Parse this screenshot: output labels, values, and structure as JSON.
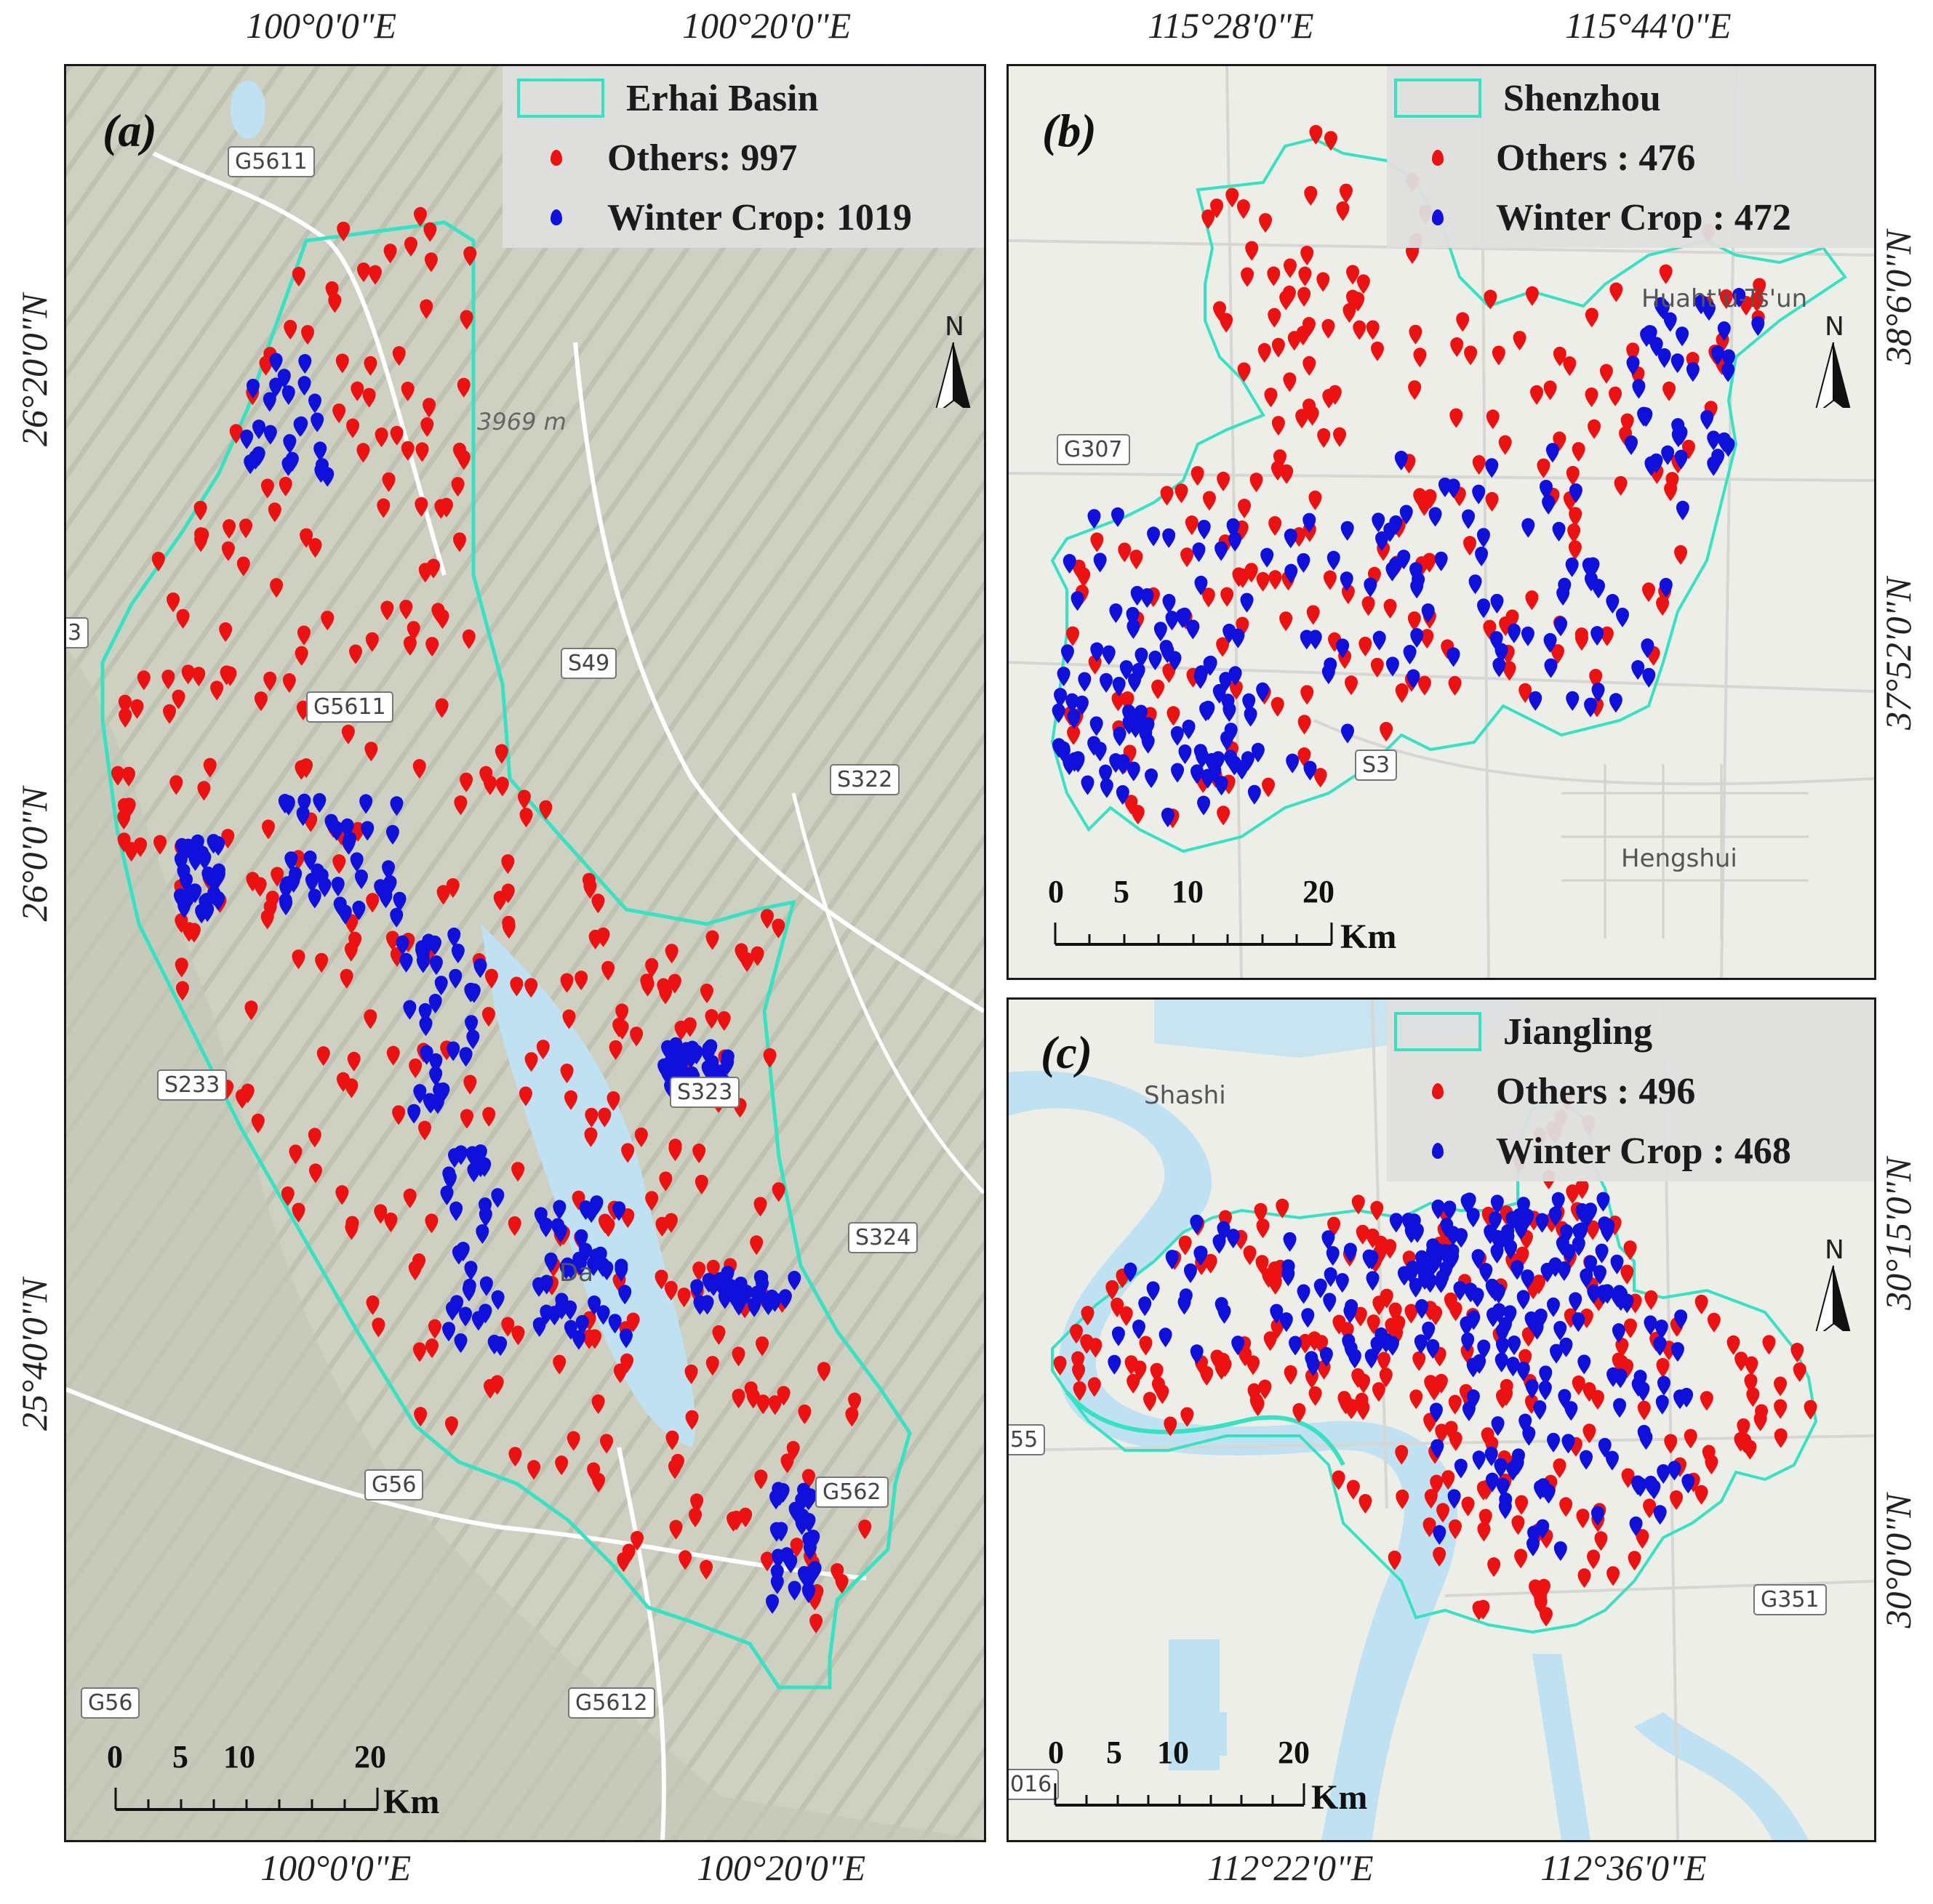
{
  "colors": {
    "others": "#ee1111",
    "winter_crop": "#1010dd",
    "boundary": "#35e3c2",
    "water": "#bfe1f2",
    "terrain": "#c9ccbd"
  },
  "icons": {
    "north_arrow": "north-arrow-icon",
    "others_marker": "red-pin-icon",
    "winter_marker": "blue-pin-icon"
  },
  "top_coords": {
    "a_left": "100°0'0\"E",
    "a_right": "100°20'0\"E",
    "b_left": "115°28'0\"E",
    "b_right": "115°44'0\"E"
  },
  "bottom_coords": {
    "a_left": "100°0'0\"E",
    "a_right": "100°20'0\"E",
    "c_left": "112°22'0\"E",
    "c_right": "112°36'0\"E"
  },
  "left_coords": {
    "a1": "26°20'0\"N",
    "a2": "26°0'0\"N",
    "a3": "25°40'0\"N"
  },
  "right_coords": {
    "b1": "38°6'0\"N",
    "b2": "37°52'0\"N",
    "c1": "30°15'0\"N",
    "c2": "30°0'0\"N"
  },
  "panels": {
    "a": {
      "letter": "(a)",
      "legend": {
        "area": "Erhai Basin",
        "others": "Others:  997",
        "winter": "Winter Crop:  1019"
      },
      "roads": [
        "G5611",
        "S49",
        "S322",
        "S233",
        "S324",
        "G56",
        "G56",
        "G5612",
        "G5611",
        "S323",
        "G562",
        "3"
      ],
      "elevation": "3969 m",
      "place": "Da",
      "north": "N",
      "scale": {
        "ticks": [
          "0",
          "5",
          "10",
          "20"
        ],
        "unit": "Km"
      }
    },
    "b": {
      "letter": "(b)",
      "legend": {
        "area": "Shenzhou",
        "others": "Others : 476",
        "winter": "Winter Crop : 472"
      },
      "roads": [
        "G307",
        "S3"
      ],
      "places": [
        "Hengshui",
        "Huaht'u-Ts'un"
      ],
      "north": "N",
      "scale": {
        "ticks": [
          "0",
          "5",
          "10",
          "20"
        ],
        "unit": "Km"
      }
    },
    "c": {
      "letter": "(c)",
      "legend": {
        "area": "Jiangling",
        "others": "Others : 496",
        "winter": "Winter Crop : 468"
      },
      "roads": [
        "G351",
        "55",
        "016"
      ],
      "places": [
        "Shashi"
      ],
      "north": "N",
      "scale": {
        "ticks": [
          "0",
          "5",
          "10",
          "20"
        ],
        "unit": "Km"
      }
    }
  }
}
